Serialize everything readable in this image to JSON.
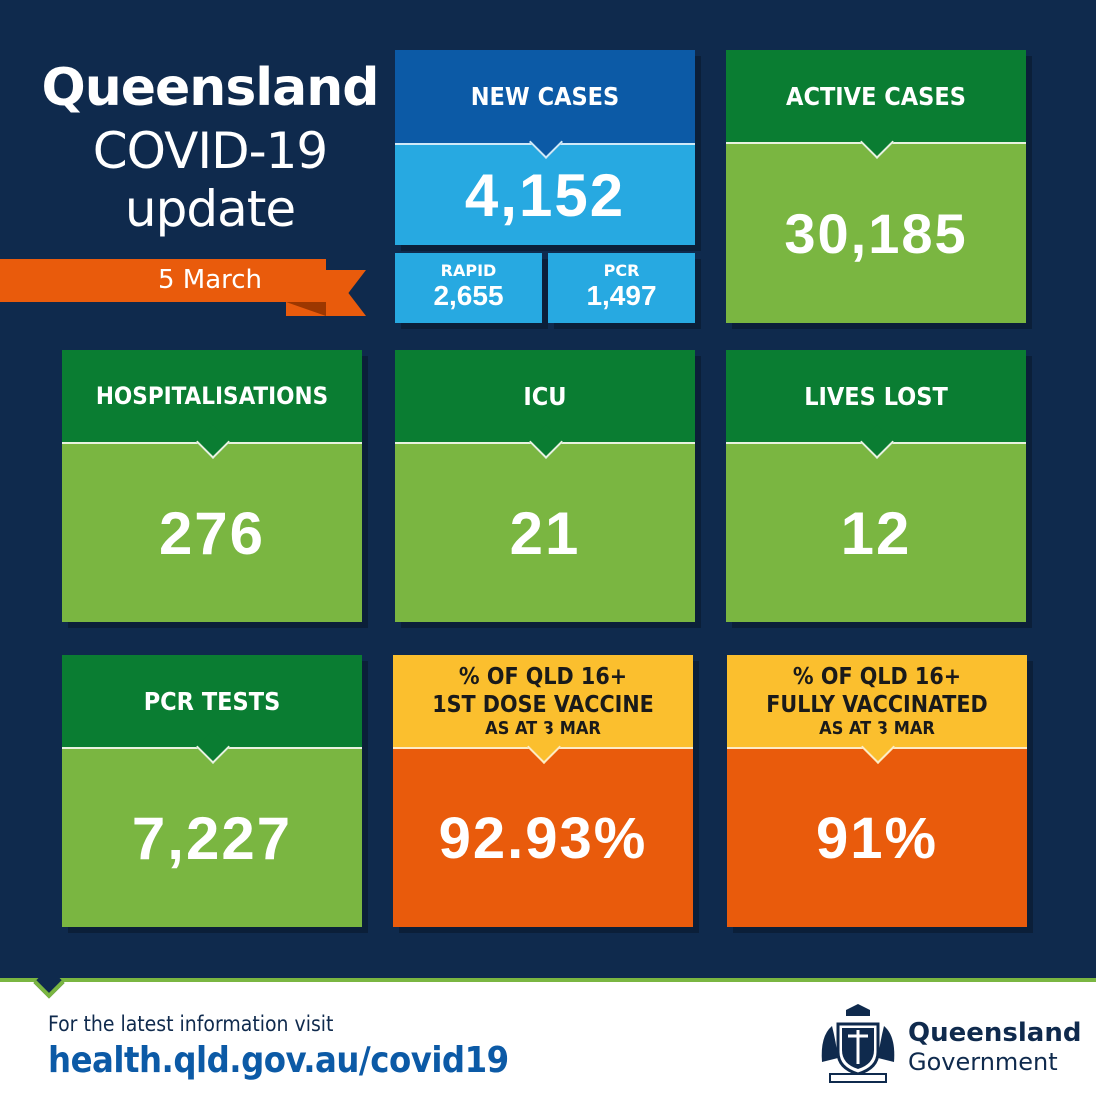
{
  "title": {
    "line1": "Queensland",
    "line2": "COVID-19",
    "line3": "update"
  },
  "date": "5 March",
  "tiles": {
    "new_cases": {
      "label": "NEW CASES",
      "value": "4,152",
      "rapid": {
        "label": "RAPID",
        "value": "2,655"
      },
      "pcr": {
        "label": "PCR",
        "value": "1,497"
      }
    },
    "active_cases": {
      "label": "ACTIVE CASES",
      "value": "30,185"
    },
    "hospitalisations": {
      "label": "HOSPITALISATIONS",
      "value": "276"
    },
    "icu": {
      "label": "ICU",
      "value": "21"
    },
    "lives_lost": {
      "label": "LIVES LOST",
      "value": "12"
    },
    "pcr_tests": {
      "label": "PCR TESTS",
      "value": "7,227"
    },
    "first_dose": {
      "line1": "% OF QLD 16+",
      "line2": "1ST DOSE VACCINE",
      "line3": "AS AT 3 MAR",
      "value": "92.93%"
    },
    "fully_vaccinated": {
      "line1": "% OF QLD 16+",
      "line2": "FULLY VACCINATED",
      "line3": "AS AT 3 MAR",
      "value": "91%"
    }
  },
  "footer": {
    "text1": "For the latest information visit",
    "link": "health.qld.gov.au/covid19",
    "brand1": "Queensland",
    "brand2": "Government"
  },
  "colors": {
    "background": "#0f2a4d",
    "green_dark": "#0a7d32",
    "green_light": "#7ab641",
    "blue_dark": "#0c5aa6",
    "blue_light": "#27a9e1",
    "orange": "#e95b0c",
    "yellow": "#fbbf2e"
  },
  "icons": {
    "crest": "queensland-coat-of-arms-icon"
  }
}
